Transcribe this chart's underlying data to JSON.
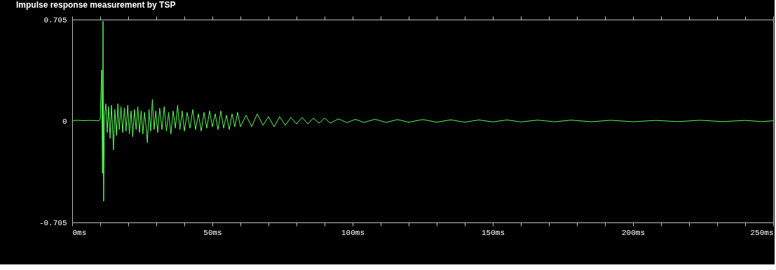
{
  "chart_data": {
    "type": "line",
    "title": "Impulse response measurement by TSP",
    "xlim": [
      0,
      250
    ],
    "ylim": [
      -0.705,
      0.705
    ],
    "xticks": [
      {
        "value": 0,
        "label": "0ms"
      },
      {
        "value": 10,
        "label": null
      },
      {
        "value": 20,
        "label": null
      },
      {
        "value": 30,
        "label": null
      },
      {
        "value": 40,
        "label": null
      },
      {
        "value": 50,
        "label": "50ms"
      },
      {
        "value": 60,
        "label": null
      },
      {
        "value": 70,
        "label": null
      },
      {
        "value": 80,
        "label": null
      },
      {
        "value": 90,
        "label": null
      },
      {
        "value": 100,
        "label": "100ms"
      },
      {
        "value": 110,
        "label": null
      },
      {
        "value": 120,
        "label": null
      },
      {
        "value": 130,
        "label": null
      },
      {
        "value": 140,
        "label": null
      },
      {
        "value": 150,
        "label": "150ms"
      },
      {
        "value": 160,
        "label": null
      },
      {
        "value": 170,
        "label": null
      },
      {
        "value": 180,
        "label": null
      },
      {
        "value": 190,
        "label": null
      },
      {
        "value": 200,
        "label": "200ms"
      },
      {
        "value": 210,
        "label": null
      },
      {
        "value": 220,
        "label": null
      },
      {
        "value": 230,
        "label": null
      },
      {
        "value": 240,
        "label": null
      },
      {
        "value": 250,
        "label": "250ms"
      }
    ],
    "yticks": [
      -0.705,
      0,
      0.705
    ],
    "grid": false,
    "marker": "none",
    "line_style": "solid",
    "series": [
      {
        "color": "#55ff55",
        "x": [
          0,
          2,
          4,
          6,
          8,
          9.5,
          10,
          10.5,
          10.8,
          11.0,
          11.2,
          11.5,
          12,
          12.5,
          13,
          13.5,
          14,
          14.5,
          14.7,
          15.2,
          15.8,
          16.3,
          16.8,
          17.4,
          18,
          18.6,
          19.2,
          19.8,
          20.4,
          21,
          21.6,
          22.2,
          22.8,
          23.4,
          24,
          24.6,
          25.2,
          25.8,
          26.4,
          26.8,
          27.4,
          28,
          28.6,
          29.2,
          29.8,
          30.5,
          31.2,
          32,
          32.8,
          33.6,
          34.4,
          35.2,
          36,
          36.8,
          37.6,
          38.4,
          39.2,
          40,
          41,
          42,
          43,
          44,
          45,
          46,
          47,
          48,
          49,
          50,
          51,
          52,
          53,
          54,
          55,
          56,
          57,
          58,
          59,
          60,
          62,
          64,
          66,
          68,
          70,
          72,
          74,
          76,
          78,
          80,
          82,
          84,
          86,
          88,
          90,
          92,
          95,
          98,
          101,
          104,
          108,
          112,
          116,
          120,
          125,
          130,
          135,
          140,
          145,
          150,
          155,
          160,
          166,
          172,
          178,
          185,
          192,
          200,
          208,
          216,
          224,
          232,
          240,
          246,
          250
        ],
        "values": [
          0.003,
          0.005,
          0.002,
          0.004,
          0.003,
          0.003,
          0.01,
          0.355,
          -0.363,
          0.694,
          -0.557,
          0.03,
          0.12,
          -0.08,
          0.1,
          -0.12,
          0.11,
          -0.09,
          -0.2,
          0.08,
          -0.1,
          0.12,
          -0.06,
          0.1,
          -0.08,
          0.09,
          -0.07,
          0.11,
          -0.09,
          0.07,
          -0.11,
          0.08,
          -0.06,
          0.1,
          -0.08,
          0.07,
          -0.09,
          0.06,
          -0.05,
          -0.15,
          0.08,
          -0.07,
          0.15,
          -0.06,
          0.07,
          -0.08,
          0.09,
          -0.06,
          0.1,
          -0.07,
          0.06,
          -0.09,
          0.07,
          -0.05,
          0.11,
          -0.06,
          0.07,
          -0.07,
          0.06,
          -0.05,
          0.08,
          -0.06,
          0.05,
          -0.07,
          0.06,
          -0.05,
          0.07,
          -0.04,
          0.05,
          -0.06,
          0.07,
          -0.05,
          0.04,
          -0.06,
          0.05,
          -0.04,
          0.06,
          -0.04,
          0.04,
          -0.04,
          0.05,
          -0.03,
          0.03,
          -0.04,
          0.03,
          -0.03,
          0.025,
          -0.02,
          0.025,
          -0.02,
          0.02,
          -0.015,
          0.02,
          -0.015,
          0.015,
          -0.012,
          0.012,
          -0.01,
          0.012,
          -0.01,
          0.01,
          -0.008,
          0.01,
          -0.008,
          0.008,
          -0.008,
          0.007,
          -0.006,
          0.007,
          -0.006,
          0.006,
          -0.005,
          0.006,
          -0.005,
          0.005,
          -0.005,
          0.004,
          -0.004,
          0.005,
          -0.004,
          0.004,
          -0.004,
          0.002
        ]
      }
    ]
  }
}
